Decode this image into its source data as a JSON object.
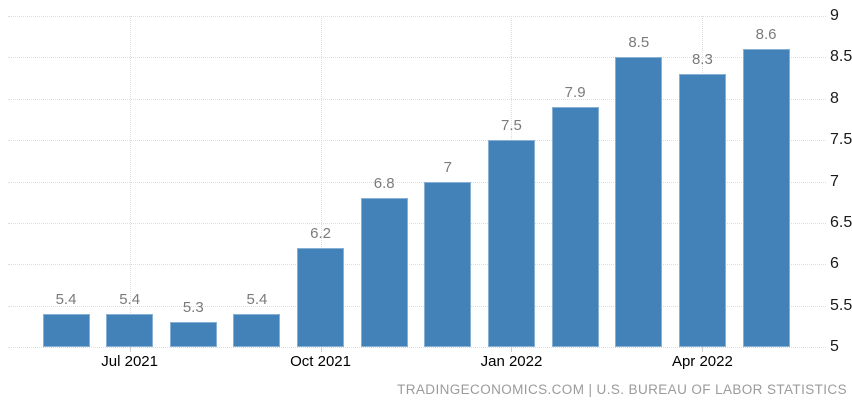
{
  "chart_data": {
    "type": "bar",
    "title": "",
    "xlabel": "",
    "ylabel": "",
    "values": [
      5.4,
      5.4,
      5.3,
      5.4,
      6.2,
      6.8,
      7,
      7.5,
      7.9,
      8.5,
      8.3,
      8.6
    ],
    "value_labels": [
      "5.4",
      "5.4",
      "5.3",
      "5.4",
      "6.2",
      "6.8",
      "7",
      "7.5",
      "7.9",
      "8.5",
      "8.3",
      "8.6"
    ],
    "x_ticks": [
      {
        "index": 1,
        "label": "Jul 2021"
      },
      {
        "index": 4,
        "label": "Oct 2021"
      },
      {
        "index": 7,
        "label": "Jan 2022"
      },
      {
        "index": 10,
        "label": "Apr 2022"
      }
    ],
    "ylim": [
      5,
      9
    ],
    "y_ticks": [
      "9",
      "8.5",
      "8",
      "7.5",
      "7",
      "6.5",
      "6",
      "5.5",
      "5"
    ],
    "y_axis_side": "right",
    "grid": "dotted",
    "legend": "none",
    "colors": {
      "bar_fill": "#4282b8",
      "bar_border": "#86b1d4",
      "gridline": "#dddddd",
      "value_label": "#7b7b7b",
      "axis_label": "#1a1a1a",
      "x_label": "#000000",
      "footer_text": "#9b9b9b"
    }
  },
  "footer": {
    "attribution": "TRADINGECONOMICS.COM | U.S. BUREAU OF LABOR STATISTICS"
  }
}
